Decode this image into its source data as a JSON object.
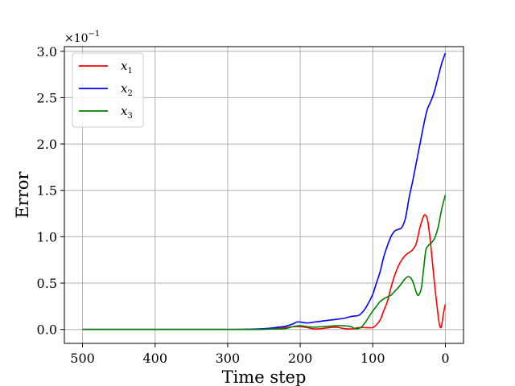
{
  "chart_data": {
    "type": "line",
    "xlabel": "Time step",
    "ylabel": "Error",
    "xlim": [
      525,
      -25
    ],
    "ylim": [
      -0.15,
      3.05
    ],
    "x_reversed": true,
    "grid": true,
    "legend_position": "top-left",
    "y_scale_factor": {
      "base": "×10",
      "exponent": "−1"
    },
    "xticks": [
      500,
      400,
      300,
      200,
      100,
      0
    ],
    "xtick_labels": [
      "500",
      "400",
      "300",
      "200",
      "100",
      "0"
    ],
    "yticks": [
      0.0,
      0.5,
      1.0,
      1.5,
      2.0,
      2.5,
      3.0
    ],
    "ytick_labels": [
      "0.0",
      "0.5",
      "1.0",
      "1.5",
      "2.0",
      "2.5",
      "3.0"
    ],
    "series": [
      {
        "name": "x1",
        "label_base": "x",
        "label_sub": "1",
        "color": "#ff0000",
        "points": [
          [
            500,
            0
          ],
          [
            400,
            0
          ],
          [
            300,
            0
          ],
          [
            260,
            0.002
          ],
          [
            240,
            0.01
          ],
          [
            220,
            0.02
          ],
          [
            210,
            0.03
          ],
          [
            200,
            0.03
          ],
          [
            190,
            0.02
          ],
          [
            180,
            0.005
          ],
          [
            170,
            0.01
          ],
          [
            160,
            0.02
          ],
          [
            150,
            0.025
          ],
          [
            140,
            0.01
          ],
          [
            130,
            0.005
          ],
          [
            120,
            0.02
          ],
          [
            110,
            0.02
          ],
          [
            100,
            0.02
          ],
          [
            95,
            0.05
          ],
          [
            90,
            0.1
          ],
          [
            85,
            0.2
          ],
          [
            80,
            0.3
          ],
          [
            75,
            0.45
          ],
          [
            70,
            0.58
          ],
          [
            65,
            0.68
          ],
          [
            60,
            0.75
          ],
          [
            55,
            0.8
          ],
          [
            50,
            0.83
          ],
          [
            45,
            0.86
          ],
          [
            40,
            0.93
          ],
          [
            35,
            1.1
          ],
          [
            30,
            1.22
          ],
          [
            27,
            1.23
          ],
          [
            24,
            1.16
          ],
          [
            20,
            0.9
          ],
          [
            15,
            0.5
          ],
          [
            10,
            0.15
          ],
          [
            8,
            0.05
          ],
          [
            6,
            0.02
          ],
          [
            4,
            0.1
          ],
          [
            2,
            0.2
          ],
          [
            0,
            0.27
          ]
        ]
      },
      {
        "name": "x2",
        "label_base": "x",
        "label_sub": "2",
        "color": "#0000ff",
        "points": [
          [
            500,
            0
          ],
          [
            400,
            0
          ],
          [
            300,
            0
          ],
          [
            260,
            0.005
          ],
          [
            240,
            0.015
          ],
          [
            230,
            0.025
          ],
          [
            220,
            0.035
          ],
          [
            210,
            0.06
          ],
          [
            205,
            0.08
          ],
          [
            200,
            0.08
          ],
          [
            190,
            0.07
          ],
          [
            180,
            0.08
          ],
          [
            170,
            0.09
          ],
          [
            160,
            0.1
          ],
          [
            150,
            0.11
          ],
          [
            140,
            0.12
          ],
          [
            130,
            0.14
          ],
          [
            120,
            0.15
          ],
          [
            115,
            0.18
          ],
          [
            110,
            0.23
          ],
          [
            105,
            0.3
          ],
          [
            100,
            0.38
          ],
          [
            95,
            0.5
          ],
          [
            90,
            0.62
          ],
          [
            85,
            0.78
          ],
          [
            80,
            0.9
          ],
          [
            75,
            1.0
          ],
          [
            70,
            1.06
          ],
          [
            65,
            1.08
          ],
          [
            60,
            1.1
          ],
          [
            55,
            1.2
          ],
          [
            50,
            1.42
          ],
          [
            45,
            1.6
          ],
          [
            40,
            1.8
          ],
          [
            35,
            2.0
          ],
          [
            30,
            2.2
          ],
          [
            25,
            2.37
          ],
          [
            20,
            2.46
          ],
          [
            15,
            2.57
          ],
          [
            10,
            2.72
          ],
          [
            5,
            2.87
          ],
          [
            0,
            2.98
          ]
        ]
      },
      {
        "name": "x3",
        "label_base": "x",
        "label_sub": "3",
        "color": "#008000",
        "points": [
          [
            500,
            0
          ],
          [
            400,
            0
          ],
          [
            300,
            0
          ],
          [
            260,
            0
          ],
          [
            240,
            0.005
          ],
          [
            230,
            0.005
          ],
          [
            220,
            0.01
          ],
          [
            210,
            0.03
          ],
          [
            200,
            0.04
          ],
          [
            190,
            0.03
          ],
          [
            180,
            0.025
          ],
          [
            170,
            0.03
          ],
          [
            160,
            0.035
          ],
          [
            150,
            0.04
          ],
          [
            140,
            0.04
          ],
          [
            130,
            0.03
          ],
          [
            125,
            0.01
          ],
          [
            120,
            0.01
          ],
          [
            115,
            0.03
          ],
          [
            110,
            0.08
          ],
          [
            105,
            0.14
          ],
          [
            100,
            0.2
          ],
          [
            95,
            0.25
          ],
          [
            90,
            0.3
          ],
          [
            85,
            0.33
          ],
          [
            80,
            0.35
          ],
          [
            75,
            0.37
          ],
          [
            70,
            0.41
          ],
          [
            65,
            0.45
          ],
          [
            60,
            0.5
          ],
          [
            55,
            0.55
          ],
          [
            50,
            0.57
          ],
          [
            45,
            0.52
          ],
          [
            40,
            0.4
          ],
          [
            37,
            0.37
          ],
          [
            33,
            0.45
          ],
          [
            30,
            0.65
          ],
          [
            27,
            0.85
          ],
          [
            24,
            0.9
          ],
          [
            20,
            0.93
          ],
          [
            15,
            0.98
          ],
          [
            10,
            1.1
          ],
          [
            5,
            1.3
          ],
          [
            0,
            1.45
          ]
        ]
      }
    ]
  }
}
